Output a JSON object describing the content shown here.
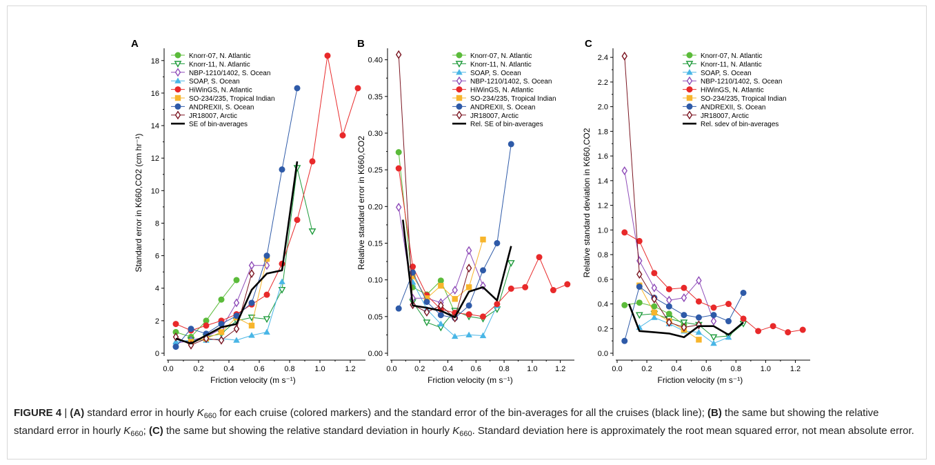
{
  "figure_label": "FIGURE 4",
  "caption": {
    "sep": " | ",
    "p1_label": "(A)",
    "p1_text_a": " standard error in hourly ",
    "p1_text_b": " for each cruise (colored markers) and the standard error of the bin-averages for all the cruises (black line); ",
    "p2_label": "(B)",
    "p2_text_a": " the same but showing the relative standard error in hourly ",
    "p2_text_b": "; ",
    "p3_label": "(C)",
    "p3_text_a": " the same but showing the relative standard deviation in hourly ",
    "p3_text_b": ". Standard deviation here is approximately the root mean squared error, not mean absolute error.",
    "k_symbol": "K",
    "k_sub": "660"
  },
  "colors": {
    "knorr07": "#5bbb3a",
    "knorr11": "#1d9a3a",
    "nbp": "#8e4bb8",
    "soap": "#49b6e6",
    "hiwings": "#e8292a",
    "so234": "#f7b52c",
    "andrexii": "#2e5aa8",
    "jr18007": "#7a1420",
    "bin": "#000000"
  },
  "chart_data": [
    {
      "type": "line",
      "panel_label": "A",
      "xlabel": "Friction velocity (m s⁻¹)",
      "ylabel": "Standard error in K660,CO2 (cm hr⁻¹)",
      "xlim": [
        0,
        1.3
      ],
      "ylim": [
        0,
        18.5
      ],
      "xticks": [
        0.0,
        0.2,
        0.4,
        0.6,
        0.8,
        1.0,
        1.2
      ],
      "xtick_labels": [
        "0.0",
        "0.2",
        "0.4",
        "0.6",
        "0.8",
        "1.0",
        "1.2"
      ],
      "yticks": [
        0,
        2,
        4,
        6,
        8,
        10,
        12,
        14,
        16,
        18
      ],
      "ytick_labels": [
        "0",
        "2",
        "4",
        "6",
        "8",
        "10",
        "12",
        "14",
        "16",
        "18"
      ],
      "legend_position": "top-left",
      "series": [
        {
          "key": "knorr07",
          "name": "Knorr-07, N. Atlantic",
          "marker": "filled-circle",
          "x": [
            0.05,
            0.15,
            0.25,
            0.35,
            0.45
          ],
          "y": [
            1.3,
            1.0,
            2.0,
            3.3,
            4.5
          ]
        },
        {
          "key": "knorr11",
          "name": "Knorr-11, N. Atlantic",
          "marker": "open-triangle-down",
          "x": [
            0.15,
            0.25,
            0.35,
            0.45,
            0.55,
            0.65,
            0.75,
            0.85,
            0.95
          ],
          "y": [
            0.8,
            1.0,
            1.2,
            2.0,
            2.2,
            2.1,
            3.9,
            11.4,
            7.5
          ]
        },
        {
          "key": "nbp",
          "name": "NBP-1210/1402, S. Ocean",
          "marker": "open-diamond",
          "x": [
            0.05,
            0.15,
            0.25,
            0.35,
            0.45,
            0.55,
            0.65
          ],
          "y": [
            0.6,
            0.8,
            1.0,
            1.5,
            3.1,
            5.4,
            5.4
          ]
        },
        {
          "key": "soap",
          "name": "SOAP, S. Ocean",
          "marker": "filled-triangle-up",
          "x": [
            0.05,
            0.15,
            0.25,
            0.35,
            0.45,
            0.55,
            0.65,
            0.75
          ],
          "y": [
            0.7,
            0.8,
            0.8,
            0.9,
            0.8,
            1.1,
            1.3,
            4.4
          ]
        },
        {
          "key": "hiwings",
          "name": "HiWinGS, N. Atlantic",
          "marker": "filled-circle",
          "x": [
            0.05,
            0.15,
            0.25,
            0.35,
            0.45,
            0.55,
            0.65,
            0.75,
            0.85,
            0.95,
            1.05,
            1.15,
            1.25
          ],
          "y": [
            1.8,
            1.4,
            1.7,
            2.0,
            2.4,
            3.0,
            3.6,
            5.5,
            8.2,
            11.8,
            18.3,
            13.4,
            16.3
          ]
        },
        {
          "key": "so234",
          "name": "SO-234/235, Tropical Indian",
          "marker": "filled-square",
          "x": [
            0.15,
            0.25,
            0.35,
            0.45,
            0.55,
            0.65
          ],
          "y": [
            0.7,
            0.9,
            1.3,
            2.2,
            1.7,
            5.8
          ]
        },
        {
          "key": "andrexii",
          "name": "ANDREXII, S. Ocean",
          "marker": "filled-circle",
          "x": [
            0.05,
            0.15,
            0.25,
            0.35,
            0.45,
            0.55,
            0.65,
            0.75,
            0.85
          ],
          "y": [
            0.4,
            1.5,
            1.2,
            1.8,
            2.3,
            3.1,
            6.0,
            11.3,
            16.3
          ]
        },
        {
          "key": "jr18007",
          "name": "JR18007, Arctic",
          "marker": "open-diamond",
          "x": [
            0.05,
            0.15,
            0.25,
            0.35,
            0.45,
            0.55
          ],
          "y": [
            1.0,
            0.5,
            0.9,
            0.8,
            1.5,
            4.9
          ]
        },
        {
          "key": "bin",
          "name": "SE of bin-averages",
          "marker": "none",
          "thick": true,
          "x": [
            0.05,
            0.15,
            0.25,
            0.35,
            0.45,
            0.55,
            0.65,
            0.75,
            0.85
          ],
          "y": [
            0.9,
            0.6,
            1.1,
            1.6,
            1.8,
            3.9,
            4.9,
            5.1,
            11.8
          ]
        }
      ]
    },
    {
      "type": "line",
      "panel_label": "B",
      "xlabel": "Friction velocity (m s⁻¹)",
      "ylabel": "Relative standard error in K660,CO2",
      "xlim": [
        0,
        1.3
      ],
      "ylim": [
        0,
        0.41
      ],
      "xticks": [
        0.0,
        0.2,
        0.4,
        0.6,
        0.8,
        1.0,
        1.2
      ],
      "xtick_labels": [
        "0.0",
        "0.2",
        "0.4",
        "0.6",
        "0.8",
        "1.0",
        "1.2"
      ],
      "yticks": [
        0.0,
        0.05,
        0.1,
        0.15,
        0.2,
        0.25,
        0.3,
        0.35,
        0.4
      ],
      "ytick_labels": [
        "0.00",
        "0.05",
        "0.10",
        "0.15",
        "0.20",
        "0.25",
        "0.30",
        "0.35",
        "0.40"
      ],
      "legend_position": "top-right",
      "series": [
        {
          "key": "knorr07",
          "name": "Knorr-07, N. Atlantic",
          "marker": "filled-circle",
          "x": [
            0.05,
            0.15,
            0.25,
            0.35,
            0.45
          ],
          "y": [
            0.274,
            0.09,
            0.08,
            0.099,
            0.055
          ]
        },
        {
          "key": "knorr11",
          "name": "Knorr-11, N. Atlantic",
          "marker": "open-triangle-down",
          "x": [
            0.15,
            0.25,
            0.35,
            0.45,
            0.55,
            0.65,
            0.75,
            0.85
          ],
          "y": [
            0.07,
            0.042,
            0.035,
            0.058,
            0.05,
            0.047,
            0.06,
            0.123
          ]
        },
        {
          "key": "soap",
          "name": "SOAP, S. Ocean",
          "marker": "filled-triangle-up",
          "x": [
            0.15,
            0.25,
            0.35,
            0.45,
            0.55,
            0.65,
            0.75
          ],
          "y": [
            0.097,
            0.06,
            0.04,
            0.023,
            0.025,
            0.024,
            0.065
          ]
        },
        {
          "key": "nbp",
          "name": "NBP-1210/1402, S. Ocean",
          "marker": "open-diamond",
          "x": [
            0.05,
            0.15,
            0.25,
            0.35,
            0.45,
            0.55,
            0.65
          ],
          "y": [
            0.199,
            0.075,
            0.075,
            0.069,
            0.086,
            0.14,
            0.092
          ]
        },
        {
          "key": "hiwings",
          "name": "HiWinGS, N. Atlantic",
          "marker": "filled-circle",
          "x": [
            0.05,
            0.15,
            0.25,
            0.35,
            0.45,
            0.55,
            0.65,
            0.75,
            0.85,
            0.95,
            1.05,
            1.15,
            1.25
          ],
          "y": [
            0.252,
            0.118,
            0.079,
            0.06,
            0.055,
            0.053,
            0.05,
            0.067,
            0.088,
            0.09,
            0.131,
            0.086,
            0.094
          ]
        },
        {
          "key": "so234",
          "name": "SO-234/235, Tropical Indian",
          "marker": "filled-square",
          "x": [
            0.15,
            0.25,
            0.35,
            0.45,
            0.55,
            0.65
          ],
          "y": [
            0.105,
            0.075,
            0.092,
            0.074,
            0.09,
            0.155
          ]
        },
        {
          "key": "andrexii",
          "name": "ANDREXII, S. Ocean",
          "marker": "filled-circle",
          "x": [
            0.05,
            0.15,
            0.25,
            0.35,
            0.45,
            0.55,
            0.65,
            0.75,
            0.85
          ],
          "y": [
            0.061,
            0.11,
            0.07,
            0.052,
            0.048,
            0.065,
            0.113,
            0.15,
            0.285
          ]
        },
        {
          "key": "jr18007",
          "name": "JR18007, Arctic",
          "marker": "open-diamond",
          "x": [
            0.05,
            0.15,
            0.25,
            0.35,
            0.45,
            0.55
          ],
          "y": [
            0.407,
            0.066,
            0.056,
            0.065,
            0.048,
            0.116
          ]
        },
        {
          "key": "bin",
          "name": "Rel. SE of bin-averages",
          "marker": "none",
          "thick": true,
          "x": [
            0.08,
            0.15,
            0.25,
            0.35,
            0.45,
            0.55,
            0.65,
            0.75,
            0.85
          ],
          "y": [
            0.182,
            0.065,
            0.062,
            0.058,
            0.049,
            0.084,
            0.09,
            0.072,
            0.146
          ]
        }
      ]
    },
    {
      "type": "line",
      "panel_label": "C",
      "xlabel": "Friction velocity (m s⁻¹)",
      "ylabel": "Relative standard deviation in K660,CO2",
      "xlim": [
        0,
        1.3
      ],
      "ylim": [
        0,
        2.44
      ],
      "xticks": [
        0.0,
        0.2,
        0.4,
        0.6,
        0.8,
        1.0,
        1.2
      ],
      "xtick_labels": [
        "0.0",
        "0.2",
        "0.4",
        "0.6",
        "0.8",
        "1.0",
        "1.2"
      ],
      "yticks": [
        0.0,
        0.2,
        0.4,
        0.6,
        0.8,
        1.0,
        1.2,
        1.4,
        1.6,
        1.8,
        2.0,
        2.2,
        2.4
      ],
      "ytick_labels": [
        "0.0",
        "0.2",
        "0.4",
        "0.6",
        "0.8",
        "1.0",
        "1.2",
        "1.4",
        "1.6",
        "1.8",
        "2.0",
        "2.2",
        "2.4"
      ],
      "legend_position": "top-right",
      "series": [
        {
          "key": "knorr07",
          "name": "Knorr-07, N. Atlantic",
          "marker": "filled-circle",
          "x": [
            0.05,
            0.15,
            0.25,
            0.35,
            0.45
          ],
          "y": [
            0.39,
            0.41,
            0.38,
            0.32,
            0.23
          ]
        },
        {
          "key": "knorr11",
          "name": "Knorr-11, N. Atlantic",
          "marker": "open-triangle-down",
          "x": [
            0.15,
            0.25,
            0.35,
            0.45,
            0.55,
            0.65,
            0.75,
            0.85
          ],
          "y": [
            0.31,
            0.32,
            0.28,
            0.25,
            0.23,
            0.13,
            0.14,
            0.24
          ]
        },
        {
          "key": "soap",
          "name": "SOAP, S. Ocean",
          "marker": "filled-triangle-up",
          "x": [
            0.15,
            0.25,
            0.35,
            0.45,
            0.55,
            0.65,
            0.75
          ],
          "y": [
            0.21,
            0.29,
            0.24,
            0.18,
            0.17,
            0.08,
            0.13
          ]
        },
        {
          "key": "nbp",
          "name": "NBP-1210/1402, S. Ocean",
          "marker": "open-diamond",
          "x": [
            0.05,
            0.15,
            0.25,
            0.35,
            0.45,
            0.55,
            0.65
          ],
          "y": [
            1.48,
            0.75,
            0.53,
            0.43,
            0.45,
            0.59,
            0.26
          ]
        },
        {
          "key": "hiwings",
          "name": "HiWinGS, N. Atlantic",
          "marker": "filled-circle",
          "x": [
            0.05,
            0.15,
            0.25,
            0.35,
            0.45,
            0.55,
            0.65,
            0.75,
            0.85,
            0.95,
            1.05,
            1.15,
            1.25
          ],
          "y": [
            0.98,
            0.91,
            0.65,
            0.52,
            0.53,
            0.42,
            0.37,
            0.4,
            0.28,
            0.18,
            0.22,
            0.17,
            0.19
          ]
        },
        {
          "key": "so234",
          "name": "SO-234/235, Tropical Indian",
          "marker": "filled-square",
          "x": [
            0.15,
            0.25,
            0.35,
            0.45,
            0.55
          ],
          "y": [
            0.55,
            0.33,
            0.26,
            0.19,
            0.11
          ]
        },
        {
          "key": "andrexii",
          "name": "ANDREXII, S. Ocean",
          "marker": "filled-circle",
          "x": [
            0.05,
            0.15,
            0.25,
            0.35,
            0.45,
            0.55,
            0.65,
            0.75,
            0.85
          ],
          "y": [
            0.1,
            0.54,
            0.45,
            0.38,
            0.31,
            0.29,
            0.31,
            0.26,
            0.49
          ]
        },
        {
          "key": "jr18007",
          "name": "JR18007, Arctic",
          "marker": "open-diamond",
          "x": [
            0.05,
            0.15,
            0.25,
            0.35,
            0.45,
            0.55
          ],
          "y": [
            2.41,
            0.64,
            0.44,
            0.25,
            0.21,
            0.23
          ]
        },
        {
          "key": "bin",
          "name": "Rel. sdev of bin-averages",
          "marker": "none",
          "thick": true,
          "x": [
            0.08,
            0.15,
            0.25,
            0.35,
            0.45,
            0.55,
            0.65,
            0.75,
            0.85
          ],
          "y": [
            0.4,
            0.18,
            0.17,
            0.16,
            0.13,
            0.22,
            0.22,
            0.15,
            0.25
          ]
        }
      ]
    }
  ]
}
